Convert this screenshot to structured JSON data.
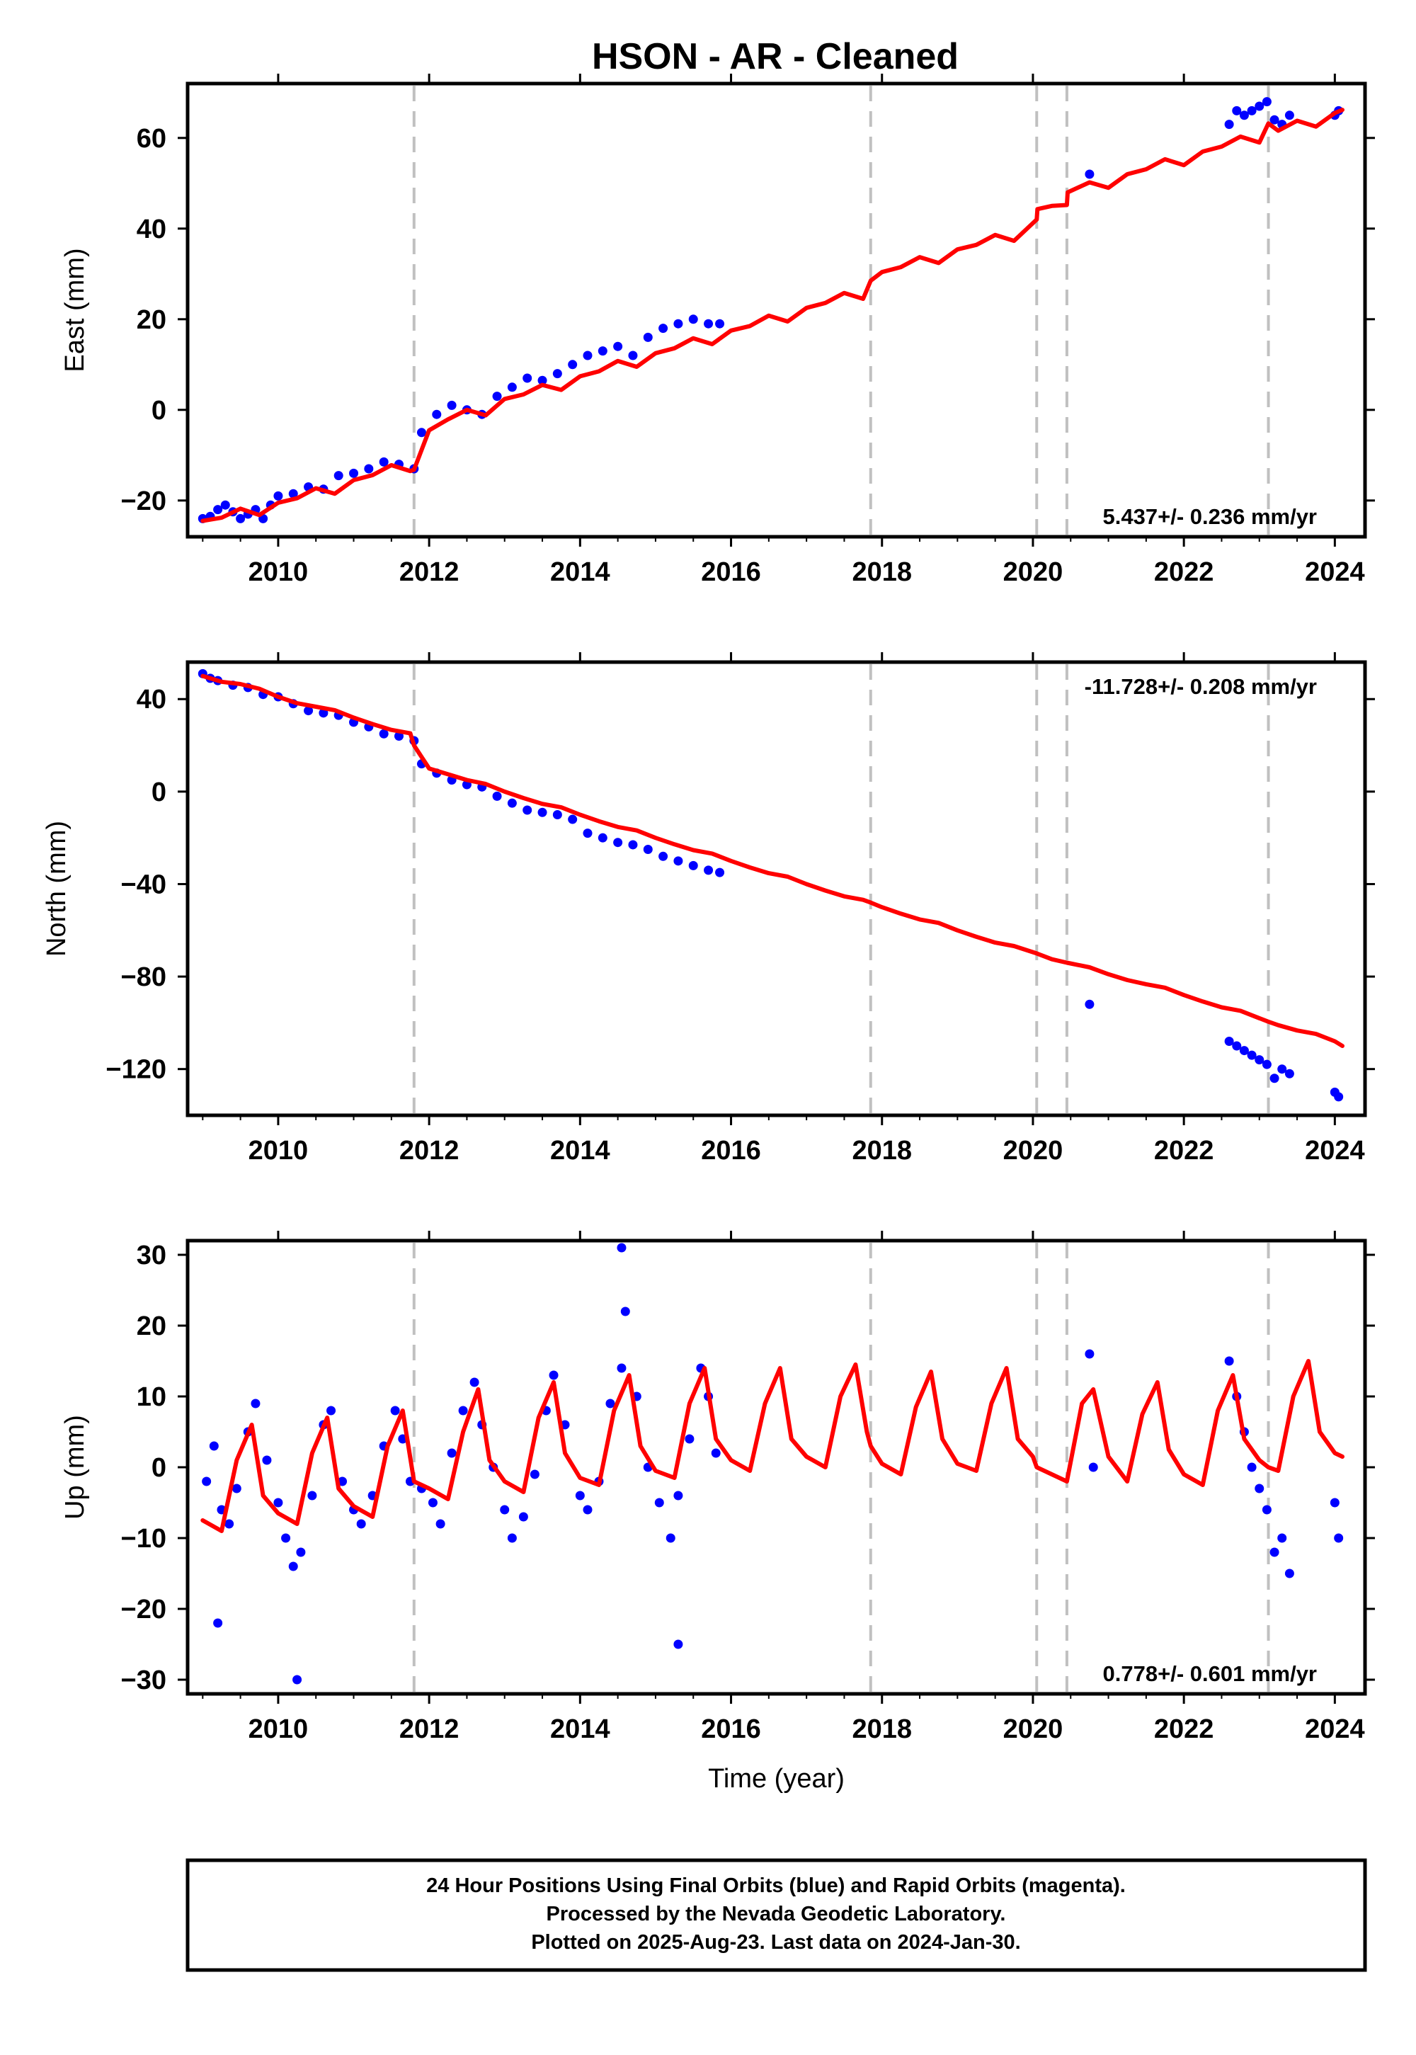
{
  "title": "HSON  - AR - Cleaned",
  "footer": {
    "lines": [
      "24 Hour Positions Using Final Orbits (blue) and Rapid Orbits (magenta).",
      "Processed by the Nevada Geodetic Laboratory.",
      "Plotted on 2025-Aug-23. Last data on 2024-Jan-30."
    ]
  },
  "colors": {
    "observations": "#0000ff",
    "model": "#ff0000",
    "equipment_change": "#c0c0c0",
    "frame": "#000000"
  },
  "chart_data": [
    {
      "type": "scatter",
      "ylabel": "East (mm)",
      "xlabel": "",
      "xlim": [
        2008.8,
        2024.4
      ],
      "ylim": [
        -28,
        72
      ],
      "xticks": [
        2010,
        2012,
        2014,
        2016,
        2018,
        2020,
        2022,
        2024
      ],
      "yticks": [
        -20,
        0,
        20,
        40,
        60
      ],
      "rate_text": "5.437+/- 0.236 mm/yr",
      "rate_position": "bottom-right",
      "equipment_changes": [
        2011.8,
        2017.85,
        2020.05,
        2020.45,
        2023.12
      ],
      "series": [
        {
          "kind": "observations",
          "x": [
            2009.0,
            2009.1,
            2009.2,
            2009.3,
            2009.4,
            2009.5,
            2009.6,
            2009.7,
            2009.8,
            2009.9,
            2010.0,
            2010.2,
            2010.4,
            2010.6,
            2010.8,
            2011.0,
            2011.2,
            2011.4,
            2011.6,
            2011.8,
            2011.9,
            2012.1,
            2012.3,
            2012.5,
            2012.7,
            2012.9,
            2013.1,
            2013.3,
            2013.5,
            2013.7,
            2013.9,
            2014.1,
            2014.3,
            2014.5,
            2014.7,
            2014.9,
            2015.1,
            2015.3,
            2015.5,
            2015.7,
            2015.85,
            2020.75,
            2022.6,
            2022.7,
            2022.8,
            2022.9,
            2023.0,
            2023.1,
            2023.2,
            2023.3,
            2023.4,
            2024.0,
            2024.05
          ],
          "y": [
            -24,
            -23.5,
            -22,
            -21,
            -22.5,
            -24,
            -23,
            -22,
            -24,
            -21,
            -19,
            -18.5,
            -17,
            -17.5,
            -14.5,
            -14,
            -13,
            -11.5,
            -12,
            -13,
            -5,
            -1,
            1,
            0,
            -1,
            3,
            5,
            7,
            6.5,
            8,
            10,
            12,
            13,
            14,
            12,
            16,
            18,
            19,
            20,
            19,
            19,
            52,
            63,
            66,
            65,
            66,
            67,
            68,
            64,
            63,
            65,
            65,
            66
          ]
        },
        {
          "kind": "model",
          "x": [
            2009.0,
            2009.25,
            2009.5,
            2009.75,
            2010.0,
            2010.25,
            2010.5,
            2010.75,
            2011.0,
            2011.25,
            2011.5,
            2011.75,
            2011.8,
            2012.0,
            2012.25,
            2012.5,
            2012.75,
            2013.0,
            2013.25,
            2013.5,
            2013.75,
            2014.0,
            2014.25,
            2014.5,
            2014.75,
            2015.0,
            2015.25,
            2015.5,
            2015.75,
            2016.0,
            2016.25,
            2016.5,
            2016.75,
            2017.0,
            2017.25,
            2017.5,
            2017.75,
            2017.85,
            2018.0,
            2018.25,
            2018.5,
            2018.75,
            2019.0,
            2019.25,
            2019.5,
            2019.75,
            2020.05,
            2020.06,
            2020.25,
            2020.45,
            2020.46,
            2020.75,
            2021.0,
            2021.25,
            2021.5,
            2021.75,
            2022.0,
            2022.25,
            2022.5,
            2022.75,
            2023.0,
            2023.12,
            2023.25,
            2023.5,
            2023.75,
            2024.0,
            2024.1
          ],
          "y": [
            -24.5,
            -23.8,
            -21.8,
            -23.2,
            -20.5,
            -19.5,
            -17.3,
            -18.5,
            -15.5,
            -14.4,
            -12.2,
            -13.5,
            -13.2,
            -4.5,
            -2.1,
            0.0,
            -1.2,
            2.4,
            3.4,
            5.5,
            4.4,
            7.4,
            8.5,
            10.8,
            9.5,
            12.5,
            13.6,
            15.8,
            14.5,
            17.5,
            18.5,
            20.8,
            19.5,
            22.5,
            23.6,
            25.8,
            24.5,
            28.5,
            30.4,
            31.5,
            33.7,
            32.4,
            35.4,
            36.4,
            38.6,
            37.3,
            42.0,
            44.3,
            45.0,
            45.2,
            48.0,
            50.2,
            49.0,
            52.0,
            53.1,
            55.3,
            54.0,
            57.0,
            58.1,
            60.3,
            59.0,
            63.2,
            61.6,
            63.8,
            62.5,
            65.5,
            66.2
          ]
        }
      ]
    },
    {
      "type": "scatter",
      "ylabel": "North (mm)",
      "xlabel": "",
      "xlim": [
        2008.8,
        2024.4
      ],
      "ylim": [
        -140,
        56
      ],
      "xticks": [
        2010,
        2012,
        2014,
        2016,
        2018,
        2020,
        2022,
        2024
      ],
      "yticks": [
        -120,
        -80,
        -40,
        0,
        40
      ],
      "rate_text": "-11.728+/- 0.208 mm/yr",
      "rate_position": "top-right",
      "equipment_changes": [
        2011.8,
        2017.85,
        2020.05,
        2020.45,
        2023.12
      ],
      "series": [
        {
          "kind": "observations",
          "x": [
            2009.0,
            2009.1,
            2009.2,
            2009.4,
            2009.6,
            2009.8,
            2010.0,
            2010.2,
            2010.4,
            2010.6,
            2010.8,
            2011.0,
            2011.2,
            2011.4,
            2011.6,
            2011.8,
            2011.9,
            2012.1,
            2012.3,
            2012.5,
            2012.7,
            2012.9,
            2013.1,
            2013.3,
            2013.5,
            2013.7,
            2013.9,
            2014.1,
            2014.3,
            2014.5,
            2014.7,
            2014.9,
            2015.1,
            2015.3,
            2015.5,
            2015.7,
            2015.85,
            2020.75,
            2022.6,
            2022.7,
            2022.8,
            2022.9,
            2023.0,
            2023.1,
            2023.2,
            2023.3,
            2023.4,
            2024.0,
            2024.05
          ],
          "y": [
            51,
            49,
            48,
            46,
            45,
            42,
            41,
            38,
            35,
            34,
            33,
            30,
            28,
            25,
            24,
            22,
            12,
            8,
            5,
            3,
            2,
            -2,
            -5,
            -8,
            -9,
            -10,
            -12,
            -18,
            -20,
            -22,
            -23,
            -25,
            -28,
            -30,
            -32,
            -34,
            -35,
            -92,
            -108,
            -110,
            -112,
            -114,
            -116,
            -118,
            -124,
            -120,
            -122,
            -130,
            -132
          ]
        },
        {
          "kind": "model",
          "x": [
            2009.0,
            2009.25,
            2009.5,
            2009.75,
            2010.0,
            2010.25,
            2010.5,
            2010.75,
            2011.0,
            2011.25,
            2011.5,
            2011.75,
            2011.8,
            2012.0,
            2012.25,
            2012.5,
            2012.75,
            2013.0,
            2013.25,
            2013.5,
            2013.75,
            2014.0,
            2014.25,
            2014.5,
            2014.75,
            2015.0,
            2015.25,
            2015.5,
            2015.75,
            2016.0,
            2016.25,
            2016.5,
            2016.75,
            2017.0,
            2017.25,
            2017.5,
            2017.75,
            2017.85,
            2018.0,
            2018.25,
            2018.5,
            2018.75,
            2019.0,
            2019.25,
            2019.5,
            2019.75,
            2020.05,
            2020.25,
            2020.45,
            2020.75,
            2021.0,
            2021.25,
            2021.5,
            2021.75,
            2022.0,
            2022.25,
            2022.5,
            2022.75,
            2023.0,
            2023.12,
            2023.25,
            2023.5,
            2023.75,
            2024.0,
            2024.1
          ],
          "y": [
            50,
            47.5,
            46.5,
            44.5,
            41,
            38.2,
            36.7,
            35.2,
            32,
            29.2,
            26.7,
            25.2,
            20,
            10,
            7.5,
            5,
            3.3,
            0,
            -2.8,
            -5.3,
            -6.8,
            -10,
            -12.8,
            -15.3,
            -16.8,
            -20,
            -22.8,
            -25.3,
            -26.8,
            -30,
            -32.8,
            -35.3,
            -36.8,
            -40,
            -42.8,
            -45.3,
            -46.8,
            -48,
            -50,
            -52.8,
            -55.3,
            -56.8,
            -60,
            -62.8,
            -65.3,
            -66.8,
            -70,
            -72.5,
            -74,
            -76,
            -79,
            -81.5,
            -83.3,
            -84.8,
            -88,
            -90.8,
            -93.3,
            -94.8,
            -98,
            -99.5,
            -101,
            -103.3,
            -104.8,
            -108,
            -110
          ]
        }
      ]
    },
    {
      "type": "scatter",
      "ylabel": "Up (mm)",
      "xlabel": "Time (year)",
      "xlim": [
        2008.8,
        2024.4
      ],
      "ylim": [
        -32,
        32
      ],
      "xticks": [
        2010,
        2012,
        2014,
        2016,
        2018,
        2020,
        2022,
        2024
      ],
      "yticks": [
        -30,
        -20,
        -10,
        0,
        10,
        20,
        30
      ],
      "rate_text": "0.778+/- 0.601 mm/yr",
      "rate_position": "bottom-right",
      "equipment_changes": [
        2011.8,
        2017.85,
        2020.05,
        2020.45,
        2023.12
      ],
      "series": [
        {
          "kind": "observations",
          "x": [
            2009.05,
            2009.15,
            2009.25,
            2009.35,
            2009.45,
            2009.6,
            2009.7,
            2009.85,
            2010.0,
            2010.1,
            2010.2,
            2010.3,
            2010.45,
            2010.6,
            2010.7,
            2010.85,
            2011.0,
            2011.1,
            2011.25,
            2011.4,
            2011.55,
            2011.65,
            2011.75,
            2011.9,
            2012.05,
            2012.15,
            2012.3,
            2012.45,
            2012.6,
            2012.7,
            2012.85,
            2013.0,
            2013.1,
            2013.25,
            2013.4,
            2013.55,
            2013.65,
            2013.8,
            2014.0,
            2014.1,
            2014.25,
            2014.4,
            2014.55,
            2014.6,
            2014.75,
            2014.9,
            2015.05,
            2015.2,
            2015.3,
            2015.45,
            2015.6,
            2015.7,
            2015.8,
            2009.2,
            2010.25,
            2015.3,
            2014.55,
            2020.75,
            2020.8,
            2022.6,
            2022.7,
            2022.8,
            2022.9,
            2023.0,
            2023.1,
            2023.2,
            2023.3,
            2023.4,
            2024.0,
            2024.05
          ],
          "y": [
            -2,
            3,
            -6,
            -8,
            -3,
            5,
            9,
            1,
            -5,
            -10,
            -14,
            -12,
            -4,
            6,
            8,
            -2,
            -6,
            -8,
            -4,
            3,
            8,
            4,
            -2,
            -3,
            -5,
            -8,
            2,
            8,
            12,
            6,
            0,
            -6,
            -10,
            -7,
            -1,
            8,
            13,
            6,
            -4,
            -6,
            -2,
            9,
            14,
            22,
            10,
            0,
            -5,
            -10,
            -4,
            4,
            14,
            10,
            2,
            -22,
            -30,
            -25,
            31,
            16,
            0,
            15,
            10,
            5,
            0,
            -3,
            -6,
            -12,
            -10,
            -15,
            -5,
            -10
          ]
        },
        {
          "kind": "model",
          "x": [
            2009.0,
            2009.25,
            2009.45,
            2009.65,
            2009.8,
            2010.0,
            2010.25,
            2010.45,
            2010.65,
            2010.8,
            2011.0,
            2011.25,
            2011.45,
            2011.65,
            2011.8,
            2012.0,
            2012.25,
            2012.45,
            2012.65,
            2012.8,
            2013.0,
            2013.25,
            2013.45,
            2013.65,
            2013.8,
            2014.0,
            2014.25,
            2014.45,
            2014.65,
            2014.8,
            2015.0,
            2015.25,
            2015.45,
            2015.65,
            2015.8,
            2016.0,
            2016.25,
            2016.45,
            2016.65,
            2016.8,
            2017.0,
            2017.25,
            2017.45,
            2017.65,
            2017.8,
            2017.85,
            2018.0,
            2018.25,
            2018.45,
            2018.65,
            2018.8,
            2019.0,
            2019.25,
            2019.45,
            2019.65,
            2019.8,
            2020.0,
            2020.05,
            2020.25,
            2020.45,
            2020.65,
            2020.8,
            2021.0,
            2021.25,
            2021.45,
            2021.65,
            2021.8,
            2022.0,
            2022.25,
            2022.45,
            2022.65,
            2022.8,
            2023.0,
            2023.12,
            2023.25,
            2023.45,
            2023.65,
            2023.8,
            2024.0,
            2024.1
          ],
          "y": [
            -7.5,
            -9,
            1,
            6,
            -4,
            -6.5,
            -8,
            2,
            7,
            -3,
            -5.5,
            -7,
            3,
            8,
            -2,
            -3,
            -4.5,
            5,
            11,
            1,
            -2,
            -3.5,
            7,
            12,
            2,
            -1.5,
            -2.5,
            8,
            13,
            3,
            -0.5,
            -1.5,
            9,
            14,
            4,
            1,
            -0.5,
            9,
            14,
            4,
            1.5,
            0,
            10,
            14.5,
            5,
            3,
            0.5,
            -1,
            8.5,
            13.5,
            4,
            0.5,
            -0.5,
            9,
            14,
            4,
            1.5,
            0,
            -1,
            -2,
            9,
            11,
            1.5,
            -2,
            7.5,
            12,
            2.5,
            -1,
            -2.5,
            8,
            13,
            4,
            1,
            0,
            -0.5,
            10,
            15,
            5,
            2,
            1.5
          ]
        }
      ]
    }
  ]
}
